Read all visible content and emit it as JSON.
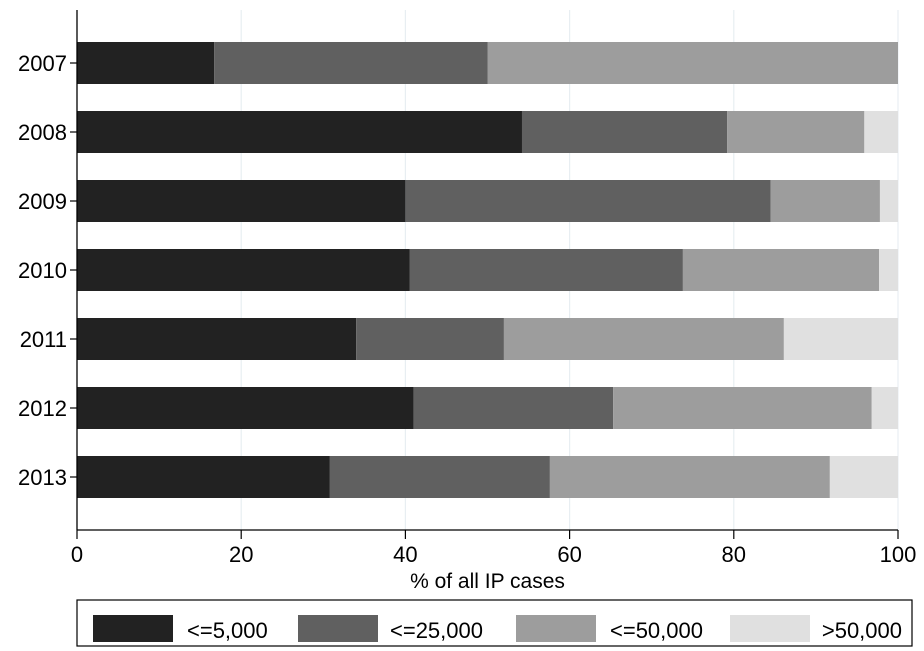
{
  "chart_data": {
    "type": "bar",
    "orientation": "horizontal",
    "stacked": true,
    "categories": [
      "2007",
      "2008",
      "2009",
      "2010",
      "2011",
      "2012",
      "2013"
    ],
    "series": [
      {
        "name": "<=5,000",
        "color": "#222222",
        "values": [
          16.7,
          54.2,
          40.0,
          40.5,
          34.0,
          41.0,
          30.8
        ]
      },
      {
        "name": "<=25,000",
        "color": "#606060",
        "values": [
          33.3,
          25.0,
          44.5,
          33.3,
          18.0,
          24.3,
          26.8
        ]
      },
      {
        "name": "<=50,000",
        "color": "#9d9d9d",
        "values": [
          50.0,
          16.7,
          13.3,
          23.9,
          34.1,
          31.5,
          34.1
        ]
      },
      {
        "name": ">50,000",
        "color": "#e0e0e0",
        "values": [
          0.0,
          4.1,
          2.2,
          2.3,
          13.9,
          3.2,
          8.3
        ]
      }
    ],
    "xlabel": "% of all IP cases",
    "ylabel": "",
    "xlim": [
      0,
      100
    ],
    "xticks": [
      0,
      20,
      40,
      60,
      80,
      100
    ],
    "grid": true,
    "legend_position": "bottom"
  }
}
